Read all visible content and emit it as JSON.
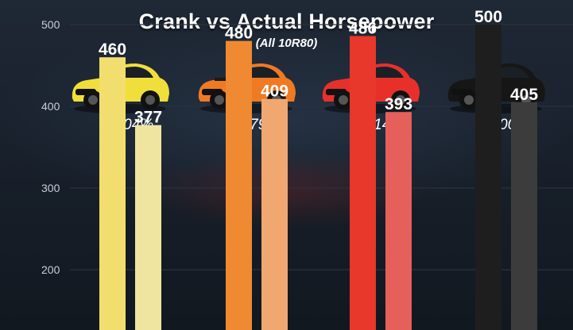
{
  "chart_data": {
    "type": "bar",
    "title": "Crank vs Actual Horsepower",
    "subtitle": "(All 10R80)",
    "yticks": [
      200,
      300,
      400,
      500
    ],
    "ylim": [
      100,
      500
    ],
    "grid": true,
    "groups": [
      {
        "car_icon": "yellow-mustang-gt-icon",
        "pct": "18.04%",
        "values": [
          460,
          377
        ],
        "colors": [
          "#f2de6e",
          "#efe4a0"
        ]
      },
      {
        "car_icon": "orange-mustang-mach1-icon",
        "pct": "14.79%",
        "values": [
          480,
          409
        ],
        "colors": [
          "#ef8a32",
          "#f0a870"
        ]
      },
      {
        "car_icon": "red-mustang-gt-icon",
        "pct": "19.14%",
        "values": [
          486,
          393
        ],
        "colors": [
          "#e8372b",
          "#e5605b"
        ]
      },
      {
        "car_icon": "black-mustang-dark-horse-icon",
        "pct": "19.00%",
        "values": [
          500,
          405
        ],
        "colors": [
          "#1e1e1e",
          "#3c3c3c"
        ]
      }
    ]
  }
}
